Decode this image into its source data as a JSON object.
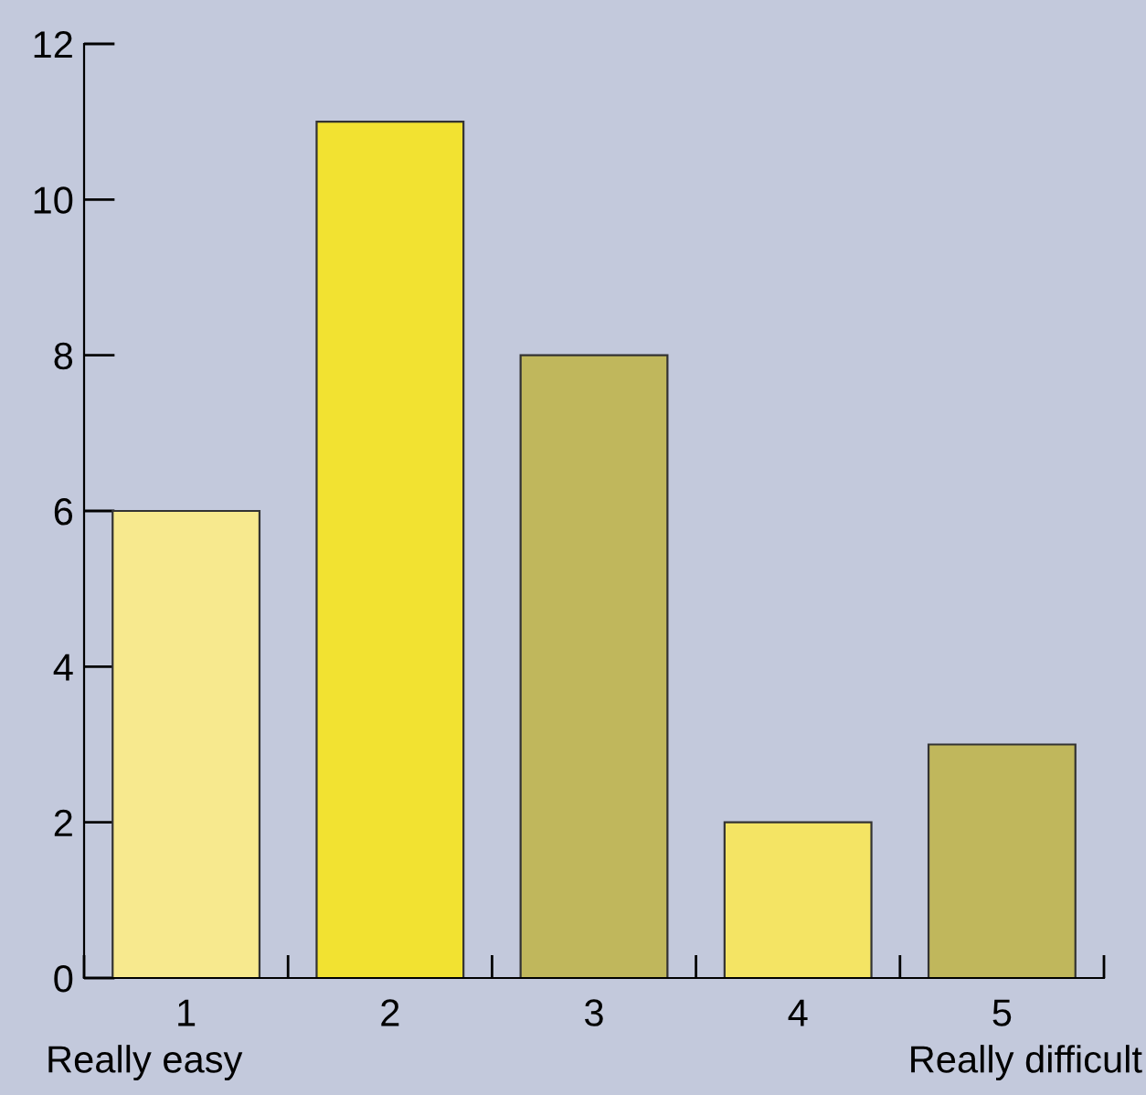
{
  "chart_data": {
    "type": "bar",
    "categories": [
      "1",
      "2",
      "3",
      "4",
      "5"
    ],
    "values": [
      6,
      11,
      8,
      2,
      3
    ],
    "colors": [
      "#f7e98e",
      "#f2e231",
      "#c0b75c",
      "#f4e464",
      "#c0b75c"
    ],
    "ylim": [
      0,
      12
    ],
    "yticks": [
      0,
      2,
      4,
      6,
      8,
      10,
      12
    ],
    "annotations": [
      "Really easy",
      "Really difficult"
    ],
    "grid": false,
    "legend": false
  }
}
